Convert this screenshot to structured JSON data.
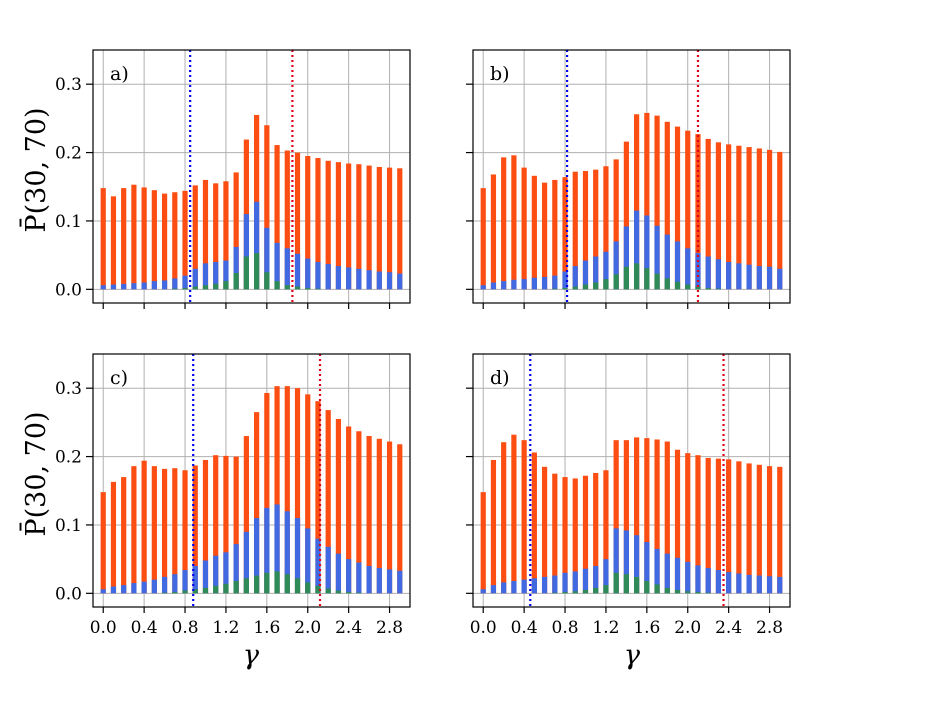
{
  "colors": {
    "total": "#fc4e12",
    "mid": "#4169e1",
    "low": "#2e8b57",
    "vline_left": "#0000ee",
    "vline_right": "#e0001b",
    "grid": "#b0b0b0"
  },
  "chart_data": [
    {
      "type": "bar",
      "panel_label": "a)",
      "ylabel": "P̄(30, 70)",
      "xlabel": "",
      "ylim": [
        -0.02,
        0.35
      ],
      "xlim": [
        -0.1,
        3.0
      ],
      "grid": true,
      "yticks": [
        "0.0",
        "0.1",
        "0.2",
        "0.3"
      ],
      "xticks": [],
      "x": [
        0.0,
        0.1,
        0.2,
        0.3,
        0.4,
        0.5,
        0.6,
        0.7,
        0.8,
        0.9,
        1.0,
        1.1,
        1.2,
        1.3,
        1.4,
        1.5,
        1.6,
        1.7,
        1.8,
        1.9,
        2.0,
        2.1,
        2.2,
        2.3,
        2.4,
        2.5,
        2.6,
        2.7,
        2.8,
        2.9
      ],
      "series": [
        {
          "values": [
            0.148,
            0.136,
            0.148,
            0.153,
            0.149,
            0.145,
            0.14,
            0.142,
            0.144,
            0.152,
            0.16,
            0.155,
            0.158,
            0.171,
            0.219,
            0.255,
            0.24,
            0.211,
            0.203,
            0.2,
            0.195,
            0.192,
            0.188,
            0.186,
            0.184,
            0.183,
            0.181,
            0.179,
            0.178,
            0.177
          ]
        },
        {
          "values": [
            0.006,
            0.007,
            0.008,
            0.009,
            0.01,
            0.012,
            0.013,
            0.016,
            0.02,
            0.03,
            0.038,
            0.04,
            0.042,
            0.062,
            0.11,
            0.128,
            0.09,
            0.068,
            0.06,
            0.052,
            0.045,
            0.04,
            0.037,
            0.034,
            0.032,
            0.03,
            0.028,
            0.026,
            0.025,
            0.023
          ]
        },
        {
          "values": [
            0.0,
            0.0,
            0.0,
            0.0,
            0.0,
            0.0,
            0.0,
            0.001,
            0.002,
            0.004,
            0.006,
            0.008,
            0.012,
            0.024,
            0.048,
            0.053,
            0.025,
            0.012,
            0.006,
            0.004,
            0.002,
            0.001,
            0.0,
            0.0,
            0.0,
            0.0,
            0.0,
            0.0,
            0.0,
            0.0
          ]
        }
      ],
      "vlines": [
        0.85,
        1.85
      ]
    },
    {
      "type": "bar",
      "panel_label": "b)",
      "ylabel": "",
      "xlabel": "",
      "ylim": [
        -0.02,
        0.35
      ],
      "xlim": [
        -0.1,
        3.0
      ],
      "grid": true,
      "yticks": [],
      "xticks": [],
      "x": [
        0.0,
        0.1,
        0.2,
        0.3,
        0.4,
        0.5,
        0.6,
        0.7,
        0.8,
        0.9,
        1.0,
        1.1,
        1.2,
        1.3,
        1.4,
        1.5,
        1.6,
        1.7,
        1.8,
        1.9,
        2.0,
        2.1,
        2.2,
        2.3,
        2.4,
        2.5,
        2.6,
        2.7,
        2.8,
        2.9
      ],
      "series": [
        {
          "values": [
            0.148,
            0.168,
            0.193,
            0.196,
            0.178,
            0.166,
            0.156,
            0.16,
            0.164,
            0.172,
            0.173,
            0.175,
            0.18,
            0.19,
            0.216,
            0.256,
            0.258,
            0.254,
            0.245,
            0.238,
            0.232,
            0.227,
            0.22,
            0.215,
            0.212,
            0.21,
            0.208,
            0.206,
            0.204,
            0.201
          ]
        },
        {
          "values": [
            0.006,
            0.01,
            0.012,
            0.014,
            0.015,
            0.017,
            0.018,
            0.02,
            0.026,
            0.034,
            0.042,
            0.048,
            0.055,
            0.07,
            0.092,
            0.115,
            0.108,
            0.093,
            0.08,
            0.07,
            0.06,
            0.053,
            0.048,
            0.044,
            0.04,
            0.038,
            0.036,
            0.034,
            0.033,
            0.03
          ]
        },
        {
          "values": [
            0.0,
            0.0,
            0.0,
            0.0,
            0.0,
            0.0,
            0.0,
            0.001,
            0.002,
            0.004,
            0.007,
            0.01,
            0.015,
            0.022,
            0.033,
            0.038,
            0.031,
            0.023,
            0.016,
            0.011,
            0.007,
            0.004,
            0.002,
            0.001,
            0.0,
            0.0,
            0.0,
            0.0,
            0.0,
            0.0
          ]
        }
      ],
      "vlines": [
        0.82,
        2.1
      ]
    },
    {
      "type": "bar",
      "panel_label": "c)",
      "ylabel": "P̄(30, 70)",
      "xlabel": "γ",
      "ylim": [
        -0.02,
        0.35
      ],
      "xlim": [
        -0.1,
        3.0
      ],
      "grid": true,
      "yticks": [
        "0.0",
        "0.1",
        "0.2",
        "0.3"
      ],
      "xticks": [
        "0.0",
        "0.4",
        "0.8",
        "1.2",
        "1.6",
        "2.0",
        "2.4",
        "2.8"
      ],
      "x": [
        0.0,
        0.1,
        0.2,
        0.3,
        0.4,
        0.5,
        0.6,
        0.7,
        0.8,
        0.9,
        1.0,
        1.1,
        1.2,
        1.3,
        1.4,
        1.5,
        1.6,
        1.7,
        1.8,
        1.9,
        2.0,
        2.1,
        2.2,
        2.3,
        2.4,
        2.5,
        2.6,
        2.7,
        2.8,
        2.9
      ],
      "series": [
        {
          "values": [
            0.148,
            0.163,
            0.17,
            0.186,
            0.194,
            0.186,
            0.182,
            0.183,
            0.18,
            0.187,
            0.195,
            0.202,
            0.201,
            0.2,
            0.23,
            0.265,
            0.293,
            0.303,
            0.303,
            0.3,
            0.291,
            0.281,
            0.268,
            0.255,
            0.244,
            0.237,
            0.23,
            0.226,
            0.222,
            0.218
          ]
        },
        {
          "values": [
            0.006,
            0.01,
            0.012,
            0.015,
            0.017,
            0.02,
            0.024,
            0.028,
            0.034,
            0.04,
            0.048,
            0.055,
            0.06,
            0.072,
            0.09,
            0.11,
            0.125,
            0.13,
            0.12,
            0.11,
            0.095,
            0.08,
            0.068,
            0.058,
            0.05,
            0.045,
            0.04,
            0.037,
            0.035,
            0.033
          ]
        },
        {
          "values": [
            0.0,
            0.0,
            0.0,
            0.0,
            0.0,
            0.0,
            0.001,
            0.002,
            0.004,
            0.006,
            0.008,
            0.011,
            0.014,
            0.018,
            0.022,
            0.026,
            0.03,
            0.032,
            0.028,
            0.022,
            0.016,
            0.011,
            0.007,
            0.004,
            0.002,
            0.001,
            0.0,
            0.0,
            0.0,
            0.0
          ]
        }
      ],
      "vlines": [
        0.88,
        2.12
      ]
    },
    {
      "type": "bar",
      "panel_label": "d)",
      "ylabel": "",
      "xlabel": "γ",
      "ylim": [
        -0.02,
        0.35
      ],
      "xlim": [
        -0.1,
        3.0
      ],
      "grid": true,
      "yticks": [],
      "xticks": [
        "0.0",
        "0.4",
        "0.8",
        "1.2",
        "1.6",
        "2.0",
        "2.4",
        "2.8"
      ],
      "x": [
        0.0,
        0.1,
        0.2,
        0.3,
        0.4,
        0.5,
        0.6,
        0.7,
        0.8,
        0.9,
        1.0,
        1.1,
        1.2,
        1.3,
        1.4,
        1.5,
        1.6,
        1.7,
        1.8,
        1.9,
        2.0,
        2.1,
        2.2,
        2.3,
        2.4,
        2.5,
        2.6,
        2.7,
        2.8,
        2.9
      ],
      "series": [
        {
          "values": [
            0.148,
            0.195,
            0.221,
            0.232,
            0.224,
            0.206,
            0.185,
            0.175,
            0.17,
            0.168,
            0.172,
            0.176,
            0.18,
            0.224,
            0.224,
            0.228,
            0.227,
            0.225,
            0.222,
            0.21,
            0.205,
            0.202,
            0.198,
            0.197,
            0.196,
            0.193,
            0.19,
            0.188,
            0.186,
            0.185
          ]
        },
        {
          "values": [
            0.006,
            0.012,
            0.016,
            0.018,
            0.02,
            0.022,
            0.024,
            0.026,
            0.03,
            0.032,
            0.036,
            0.04,
            0.05,
            0.095,
            0.092,
            0.085,
            0.075,
            0.065,
            0.058,
            0.052,
            0.046,
            0.041,
            0.037,
            0.034,
            0.031,
            0.029,
            0.027,
            0.026,
            0.025,
            0.024
          ]
        },
        {
          "values": [
            0.0,
            0.0,
            0.0,
            0.0,
            0.0,
            0.0,
            0.0,
            0.001,
            0.002,
            0.003,
            0.005,
            0.008,
            0.012,
            0.03,
            0.028,
            0.024,
            0.018,
            0.013,
            0.008,
            0.005,
            0.003,
            0.002,
            0.001,
            0.0,
            0.0,
            0.0,
            0.0,
            0.0,
            0.0,
            0.0
          ]
        }
      ],
      "vlines": [
        0.46,
        2.35
      ]
    }
  ]
}
